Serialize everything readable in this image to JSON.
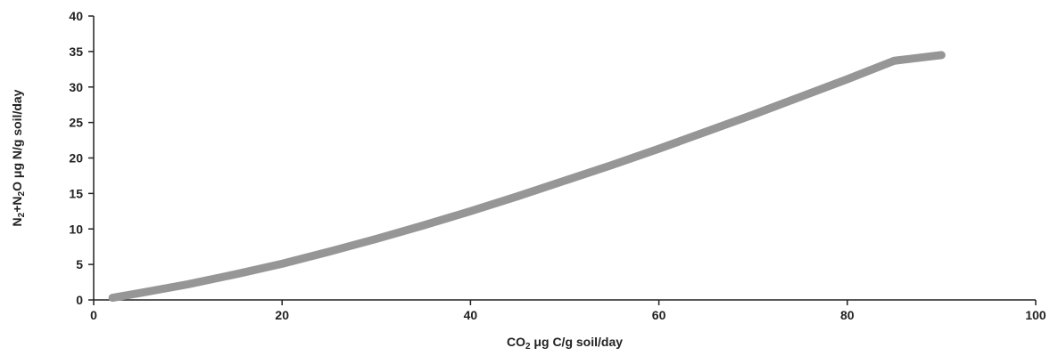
{
  "chart_data": {
    "type": "line",
    "title": "",
    "xlabel": {
      "pre": "CO",
      "sub": "2",
      "post": " μg C/g soil/day"
    },
    "ylabel": {
      "a": "N",
      "a_sub": "2",
      "b": "+N",
      "b_sub": "2",
      "c": "O μg N/g soil/day"
    },
    "xlim": [
      0,
      100
    ],
    "ylim": [
      0,
      40
    ],
    "xticks": [
      0,
      20,
      40,
      60,
      80,
      100
    ],
    "yticks": [
      0,
      5,
      10,
      15,
      20,
      25,
      30,
      35,
      40
    ],
    "grid": false,
    "series": [
      {
        "color": "#969696",
        "x": [
          2,
          5,
          10,
          15,
          20,
          25,
          30,
          35,
          40,
          45,
          50,
          55,
          60,
          65,
          70,
          75,
          80,
          85,
          90
        ],
        "y": [
          0.3,
          1.0,
          2.2,
          3.6,
          5.1,
          6.8,
          8.6,
          10.5,
          12.5,
          14.6,
          16.8,
          19.0,
          21.3,
          23.7,
          26.1,
          28.6,
          31.1,
          33.7,
          34.5
        ]
      }
    ]
  }
}
